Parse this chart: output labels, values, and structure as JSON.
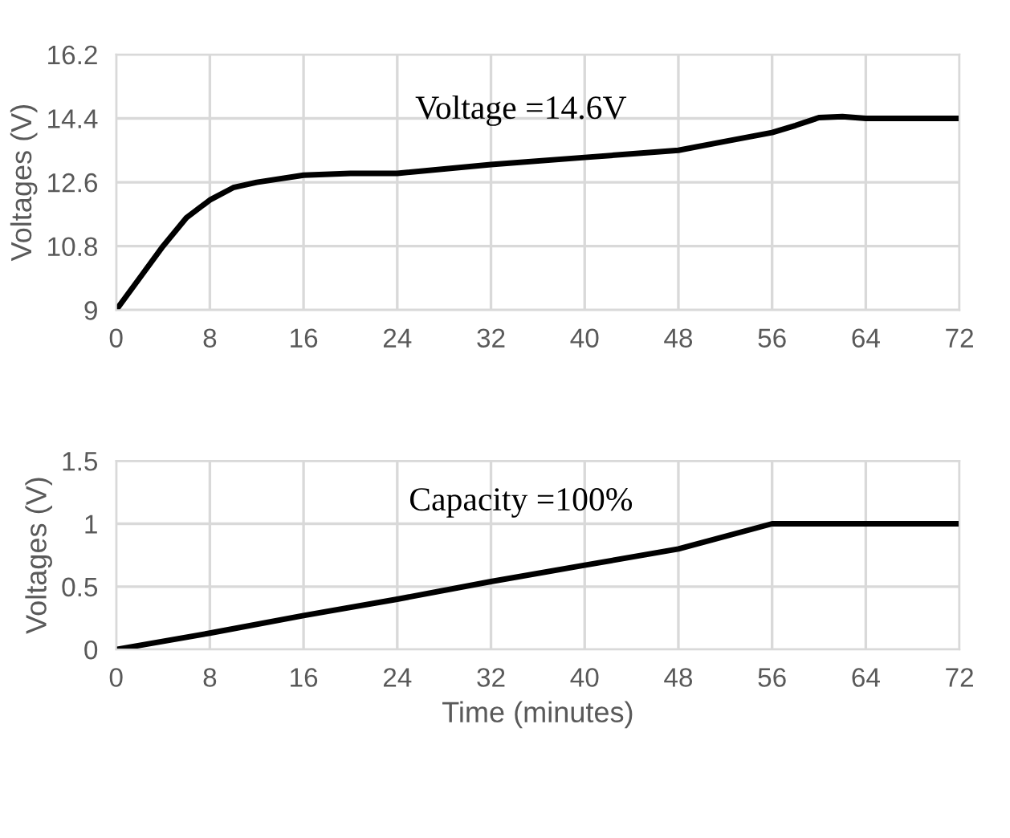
{
  "chart_data": [
    {
      "type": "line",
      "ylabel": "Voltages (V)",
      "annotations": [
        "Voltage =14.6V"
      ],
      "x": [
        0,
        2,
        4,
        6,
        8,
        10,
        12,
        16,
        20,
        24,
        32,
        40,
        48,
        52,
        56,
        58,
        60,
        62,
        64,
        72
      ],
      "series": [
        {
          "color": "#000000",
          "values": [
            9,
            9.9,
            10.8,
            11.6,
            12.1,
            12.45,
            12.6,
            12.8,
            12.85,
            12.85,
            13.1,
            13.3,
            13.5,
            13.75,
            14.0,
            14.2,
            14.42,
            14.45,
            14.4,
            14.4
          ]
        }
      ],
      "xlim": [
        0,
        72
      ],
      "xticks": [
        0,
        8,
        16,
        24,
        32,
        40,
        48,
        56,
        64,
        72
      ],
      "ylim": [
        9,
        16.2
      ],
      "yticks": [
        9,
        10.8,
        12.6,
        14.4,
        16.2
      ],
      "grid": true,
      "legend": false,
      "marker": "none",
      "line_style": "solid"
    },
    {
      "type": "line",
      "xlabel": "Time (minutes)",
      "ylabel": "Voltages (V)",
      "annotations": [
        "Capacity =100%"
      ],
      "x": [
        0,
        8,
        16,
        24,
        32,
        40,
        48,
        56,
        64,
        72
      ],
      "series": [
        {
          "color": "#000000",
          "values": [
            0,
            0.13,
            0.27,
            0.4,
            0.54,
            0.67,
            0.8,
            1.0,
            1.0,
            1.0
          ]
        }
      ],
      "xlim": [
        0,
        72
      ],
      "xticks": [
        0,
        8,
        16,
        24,
        32,
        40,
        48,
        56,
        64,
        72
      ],
      "ylim": [
        0,
        1.5
      ],
      "yticks": [
        0,
        0.5,
        1,
        1.5
      ],
      "grid": true,
      "legend": false,
      "marker": "none",
      "line_style": "solid"
    }
  ]
}
